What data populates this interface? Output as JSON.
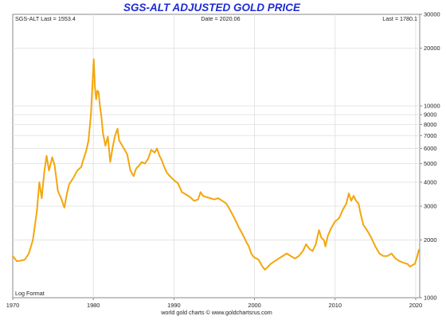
{
  "chart_data": {
    "type": "line",
    "title": "SGS-ALT ADJUSTED  GOLD PRICE",
    "info": {
      "left": "SGS-ALT Last = 1553.4",
      "center": "Date = 2020.06",
      "right": "Last = 1780.1"
    },
    "scale_note": "Log Format",
    "footer": "world gold charts © www.goldchartsrus.com",
    "y_scale": "log",
    "ylim": [
      1000,
      30000
    ],
    "xlim": [
      1970,
      2020.5
    ],
    "y_ticks": [
      "1000",
      "2000",
      "3000",
      "4000",
      "5000",
      "6000",
      "7000",
      "8000",
      "9000",
      "10000",
      "20000",
      "30000"
    ],
    "y_tick_values": [
      1000,
      2000,
      3000,
      4000,
      5000,
      6000,
      7000,
      8000,
      9000,
      10000,
      20000,
      30000
    ],
    "x_ticks": [
      "1970",
      "1980",
      "1990",
      "2000",
      "2010",
      "2020"
    ],
    "x_tick_values": [
      1970,
      1980,
      1990,
      2000,
      2010,
      2020
    ],
    "grid": true,
    "line_color": "#f4a60c",
    "series": [
      {
        "x": [
          1970.0,
          1970.5,
          1971.0,
          1971.5,
          1972.0,
          1972.5,
          1973.0,
          1973.3,
          1973.6,
          1973.9,
          1974.2,
          1974.5,
          1974.9,
          1975.2,
          1975.6,
          1976.0,
          1976.4,
          1976.7,
          1977.0,
          1977.5,
          1978.0,
          1978.5,
          1978.8,
          1979.1,
          1979.4,
          1979.7,
          1979.9,
          1980.05,
          1980.2,
          1980.35,
          1980.5,
          1980.65,
          1980.8,
          1981.0,
          1981.2,
          1981.5,
          1981.8,
          1982.1,
          1982.4,
          1982.7,
          1983.0,
          1983.2,
          1983.5,
          1983.8,
          1984.2,
          1984.6,
          1985.0,
          1985.3,
          1985.7,
          1986.0,
          1986.4,
          1986.8,
          1987.2,
          1987.6,
          1987.9,
          1988.2,
          1988.5,
          1988.8,
          1989.1,
          1989.5,
          1990.0,
          1990.5,
          1991.0,
          1991.5,
          1992.0,
          1992.5,
          1993.0,
          1993.3,
          1993.6,
          1994.0,
          1994.5,
          1995.0,
          1995.5,
          1996.0,
          1996.5,
          1997.0,
          1997.5,
          1998.0,
          1998.5,
          1999.0,
          1999.3,
          1999.6,
          1999.8,
          2000.0,
          2000.5,
          2001.0,
          2001.3,
          2001.6,
          2002.0,
          2002.5,
          2003.0,
          2003.5,
          2004.0,
          2004.5,
          2005.0,
          2005.5,
          2006.0,
          2006.4,
          2006.8,
          2007.2,
          2007.6,
          2008.0,
          2008.3,
          2008.6,
          2008.8,
          2009.1,
          2009.5,
          2010.0,
          2010.5,
          2011.0,
          2011.4,
          2011.7,
          2012.0,
          2012.3,
          2012.6,
          2012.9,
          2013.2,
          2013.5,
          2013.8,
          2014.1,
          2014.5,
          2015.0,
          2015.5,
          2016.0,
          2016.5,
          2017.0,
          2017.5,
          2018.0,
          2018.5,
          2019.0,
          2019.3,
          2019.6,
          2019.9,
          2020.2,
          2020.4
        ],
        "values": [
          1650,
          1550,
          1560,
          1580,
          1700,
          2000,
          2850,
          4000,
          3300,
          4500,
          5500,
          4600,
          5400,
          4900,
          3600,
          3300,
          2950,
          3450,
          3900,
          4200,
          4600,
          4800,
          5300,
          5800,
          6600,
          9000,
          13200,
          17500,
          12500,
          10800,
          12000,
          11800,
          10100,
          8800,
          7200,
          6200,
          6900,
          5100,
          6100,
          7000,
          7600,
          6600,
          6300,
          6000,
          5600,
          4600,
          4300,
          4700,
          4900,
          5100,
          5000,
          5300,
          5900,
          5700,
          6000,
          5500,
          5200,
          4800,
          4500,
          4300,
          4100,
          3950,
          3550,
          3450,
          3350,
          3200,
          3250,
          3550,
          3400,
          3350,
          3300,
          3250,
          3300,
          3200,
          3100,
          2850,
          2600,
          2350,
          2150,
          1950,
          1850,
          1700,
          1650,
          1620,
          1580,
          1450,
          1400,
          1440,
          1500,
          1550,
          1600,
          1650,
          1700,
          1650,
          1600,
          1650,
          1750,
          1900,
          1800,
          1750,
          1900,
          2250,
          2050,
          2000,
          1850,
          2100,
          2300,
          2500,
          2600,
          2900,
          3100,
          3500,
          3200,
          3400,
          3200,
          3100,
          2700,
          2400,
          2300,
          2200,
          2050,
          1850,
          1700,
          1650,
          1650,
          1700,
          1600,
          1550,
          1520,
          1500,
          1450,
          1480,
          1500,
          1650,
          1780
        ]
      }
    ]
  }
}
